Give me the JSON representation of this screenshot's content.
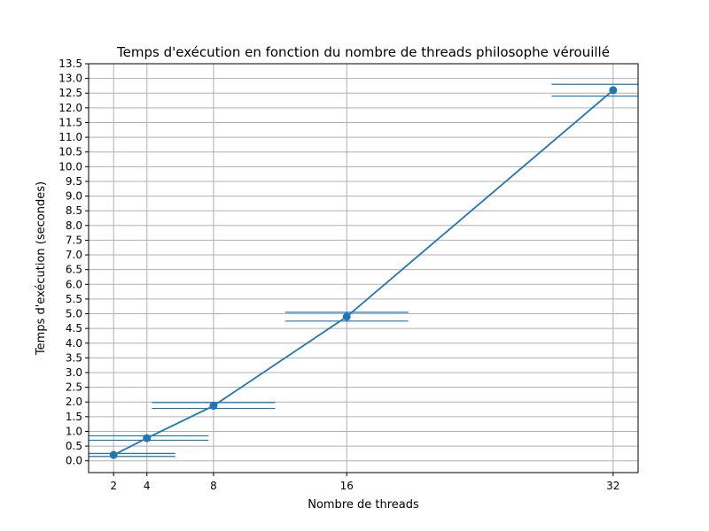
{
  "chart_data": {
    "type": "line",
    "title": "Temps d'exécution en fonction du nombre de threads philosophe vérouillé",
    "xlabel": "Nombre de threads",
    "ylabel": "Temps d'exécution (secondes)",
    "x": [
      2,
      4,
      8,
      16,
      32
    ],
    "xlim": [
      0.5,
      33.5
    ],
    "xticks": [
      "2",
      "4",
      "8",
      "16",
      "32"
    ],
    "ylim": [
      -0.4,
      13.5
    ],
    "yticks": [
      "0.0",
      "0.5",
      "1.0",
      "1.5",
      "2.0",
      "2.5",
      "3.0",
      "3.5",
      "4.0",
      "4.5",
      "5.0",
      "5.5",
      "6.0",
      "6.5",
      "7.0",
      "7.5",
      "8.0",
      "8.5",
      "9.0",
      "9.5",
      "10.0",
      "10.5",
      "11.0",
      "11.5",
      "12.0",
      "12.5",
      "13.0",
      "13.5"
    ],
    "grid": true,
    "series": [
      {
        "values": [
          0.2,
          0.77,
          1.87,
          4.9,
          12.6
        ],
        "color": "#1f77b4",
        "marker": "circle",
        "band_upper": [
          0.25,
          0.85,
          1.98,
          5.05,
          12.8
        ],
        "band_lower": [
          0.15,
          0.7,
          1.78,
          4.75,
          12.4
        ],
        "band_x_halfwidth": [
          3.7,
          3.7,
          3.7,
          3.7,
          3.7
        ]
      }
    ]
  }
}
